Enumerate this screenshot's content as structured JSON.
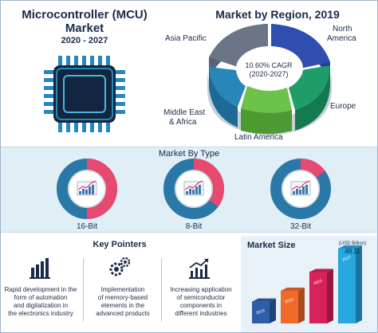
{
  "header": {
    "title_line1": "Microcontroller (MCU)",
    "title_line2": "Market",
    "period": "2020 - 2027"
  },
  "region": {
    "title": "Market by Region, 2019",
    "labels": {
      "asia_pacific": "Asia Pacific",
      "north_america_1": "North",
      "north_america_2": "America",
      "europe": "Europe",
      "latin_america": "Latin America",
      "mea_1": "Middle East",
      "mea_2": "& Africa"
    },
    "cagr_line1": "10.60% CAGR",
    "cagr_line2": "(2020-2027)",
    "colors": {
      "asia_pacific": "#6b7585",
      "north_america": "#2f4eb0",
      "europe": "#1f9d68",
      "latin_america": "#6cc24a",
      "mea": "#2a86b8"
    }
  },
  "by_type": {
    "title": "Market By Type",
    "items": [
      {
        "label": "16-Bit",
        "share": 0.5
      },
      {
        "label": "8-Bit",
        "share": 0.35
      },
      {
        "label": "32-Bit",
        "share": 0.15
      }
    ],
    "colors": {
      "primary": "#e8496f",
      "secondary": "#2a78a8"
    }
  },
  "key_pointers": {
    "title": "Key Pointers",
    "items": [
      {
        "icon": "bar-chart-icon",
        "lines": [
          "Rapid development in the",
          "form of automation",
          "and digitalization in",
          "the electronics industry"
        ]
      },
      {
        "icon": "gears-icon",
        "lines": [
          "Implementation",
          "of memory-based",
          "elements in the",
          "advanced products"
        ]
      },
      {
        "icon": "rising-chart-icon",
        "lines": [
          "Increasing application",
          "of semiconductor",
          "components in",
          "different industries"
        ]
      }
    ]
  },
  "market_size": {
    "title": "Market Size",
    "unit": "(USD Billion)",
    "value_label": "48.11",
    "chart_data": {
      "type": "bar",
      "categories": [
        "2019",
        "2020",
        "2023",
        "2027"
      ],
      "values": [
        14,
        21,
        33,
        48.11
      ],
      "colors": [
        "#2f5ea8",
        "#f06a2a",
        "#d8215a",
        "#26a7e0"
      ]
    }
  }
}
